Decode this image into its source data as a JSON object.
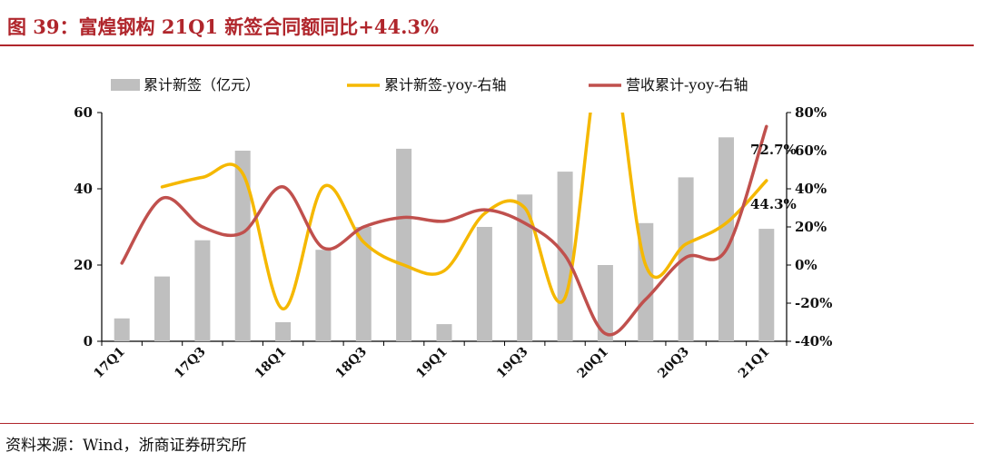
{
  "title": "图 39：富煌钢构 21Q1 新签合同额同比+44.3%",
  "source": "资料来源：Wind，浙商证券研究所",
  "colors": {
    "title": "#b0262c",
    "bar": "#bfbfbf",
    "yoy_new": "#f5b800",
    "yoy_rev": "#c0504d"
  },
  "chart_data": {
    "type": "bar+line",
    "categories": [
      "17Q1",
      "17Q2",
      "17Q3",
      "17Q4",
      "18Q1",
      "18Q2",
      "18Q3",
      "18Q4",
      "19Q1",
      "19Q2",
      "19Q3",
      "19Q4",
      "20Q1",
      "20Q2",
      "20Q3",
      "20Q4",
      "21Q1"
    ],
    "tick_labels": [
      "17Q1",
      "17Q3",
      "18Q1",
      "18Q3",
      "19Q1",
      "19Q3",
      "20Q1",
      "20Q3",
      "21Q1"
    ],
    "left_axis": {
      "min": 0,
      "max": 60,
      "ticks": [
        "0",
        "20",
        "40",
        "60"
      ],
      "tick_values": [
        0,
        20,
        40,
        60
      ]
    },
    "right_axis": {
      "min": -40,
      "max": 80,
      "ticks": [
        "-40%",
        "-20%",
        "0%",
        "20%",
        "40%",
        "60%",
        "80%"
      ],
      "tick_values": [
        -40,
        -20,
        0,
        20,
        40,
        60,
        80
      ]
    },
    "series": [
      {
        "name": "累计新签（亿元）",
        "type": "bar",
        "axis": "left",
        "values": [
          6,
          17,
          26.5,
          50,
          5,
          24,
          30,
          50.5,
          4.5,
          30,
          38.5,
          44.5,
          20,
          31,
          43,
          53.5,
          29.5
        ]
      },
      {
        "name": "累计新签-yoy-右轴",
        "type": "line",
        "axis": "right",
        "values": [
          null,
          41,
          46,
          48,
          -23,
          41,
          12,
          0,
          -3,
          27,
          30,
          -17,
          120,
          0,
          11,
          22,
          44.3
        ]
      },
      {
        "name": "营收累计-yoy-右轴",
        "type": "line",
        "axis": "right",
        "values": [
          1,
          35,
          20,
          17,
          41,
          9,
          20,
          25,
          23,
          29,
          22,
          5,
          -36,
          -18,
          4,
          8,
          72.7
        ]
      }
    ],
    "annotations": [
      "72.7%",
      "44.3%"
    ]
  }
}
